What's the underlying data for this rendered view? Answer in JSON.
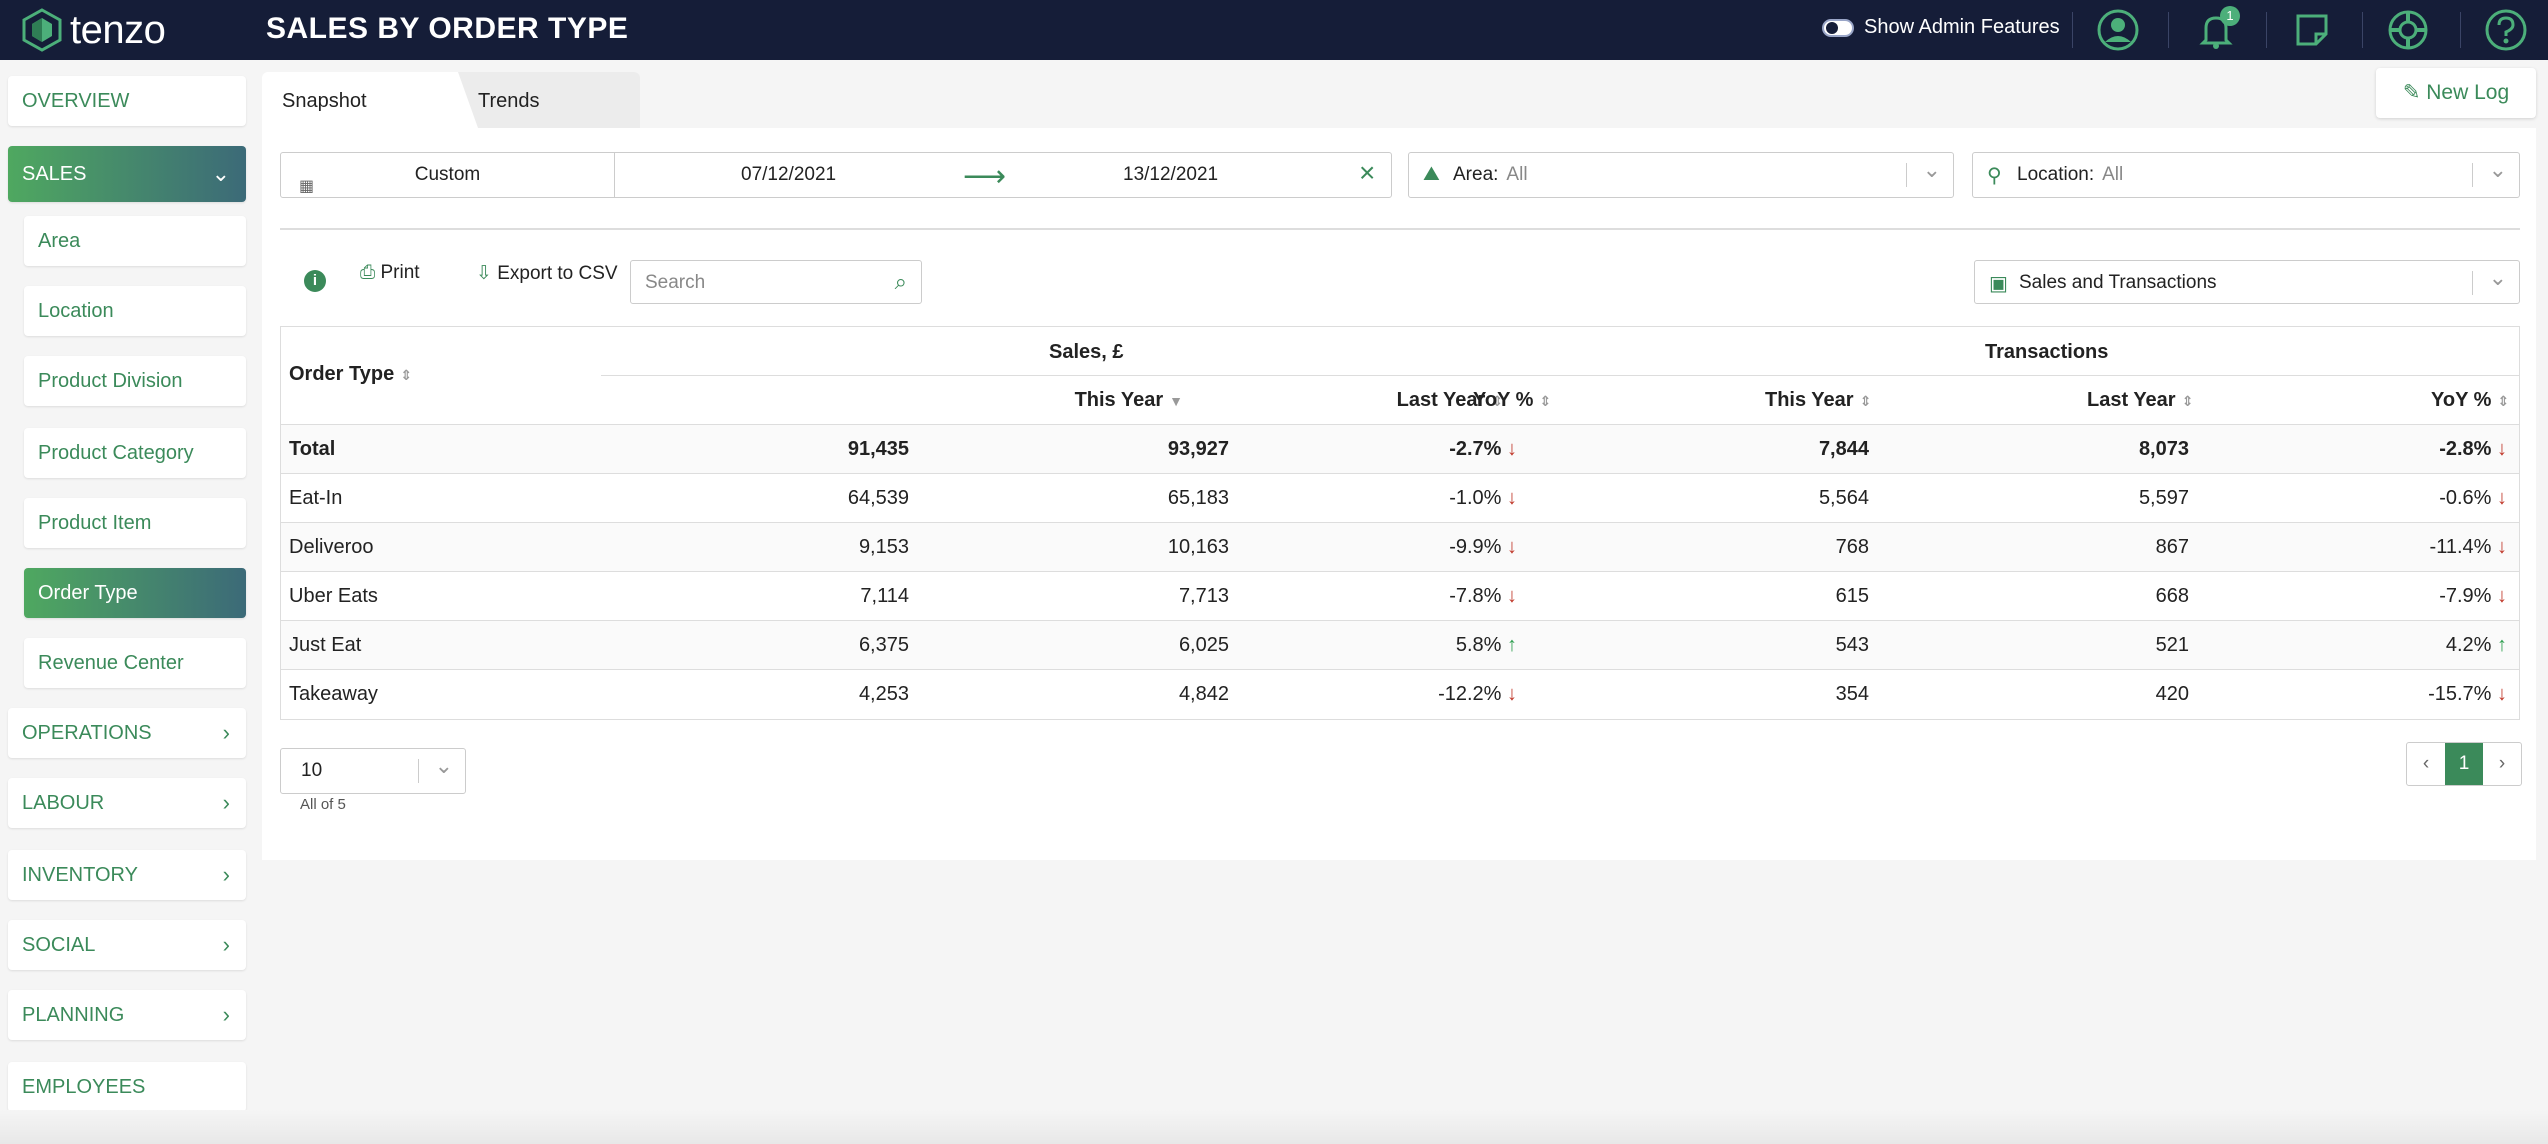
{
  "header": {
    "logo_text": "tenzo",
    "title": "SALES BY ORDER TYPE",
    "admin_label": "Show Admin Features",
    "notification_count": "1"
  },
  "sidebar": {
    "items": [
      {
        "label": "OVERVIEW"
      },
      {
        "label": "SALES"
      },
      {
        "label": "OPERATIONS"
      },
      {
        "label": "LABOUR"
      },
      {
        "label": "INVENTORY"
      },
      {
        "label": "SOCIAL"
      },
      {
        "label": "PLANNING"
      },
      {
        "label": "EMPLOYEES"
      }
    ],
    "sales_sub": [
      {
        "label": "Area"
      },
      {
        "label": "Location"
      },
      {
        "label": "Product Division"
      },
      {
        "label": "Product Category"
      },
      {
        "label": "Product Item"
      },
      {
        "label": "Order Type"
      },
      {
        "label": "Revenue Center"
      }
    ]
  },
  "tabs": [
    {
      "label": "Snapshot"
    },
    {
      "label": "Trends"
    }
  ],
  "new_log_label": "New Log",
  "filters": {
    "date_mode": "Custom",
    "date_from": "07/12/2021",
    "date_to": "13/12/2021",
    "area_label": "Area:",
    "area_value": "All",
    "location_label": "Location:",
    "location_value": "All"
  },
  "toolbar": {
    "print_label": "Print",
    "export_label": "Export to CSV",
    "search_placeholder": "Search",
    "metric_select": "Sales and Transactions"
  },
  "table": {
    "first_col": "Order Type",
    "groups": [
      "Sales, £",
      "Transactions"
    ],
    "sub_headers": [
      "This Year",
      "Last Year",
      "YoY %",
      "This Year",
      "Last Year",
      "YoY %"
    ],
    "rows": [
      {
        "name": "Total",
        "s_ty": "91,435",
        "s_ly": "93,927",
        "s_yoy": "-2.7%",
        "s_dir": "down",
        "t_ty": "7,844",
        "t_ly": "8,073",
        "t_yoy": "-2.8%",
        "t_dir": "down"
      },
      {
        "name": "Eat-In",
        "s_ty": "64,539",
        "s_ly": "65,183",
        "s_yoy": "-1.0%",
        "s_dir": "down",
        "t_ty": "5,564",
        "t_ly": "5,597",
        "t_yoy": "-0.6%",
        "t_dir": "down"
      },
      {
        "name": "Deliveroo",
        "s_ty": "9,153",
        "s_ly": "10,163",
        "s_yoy": "-9.9%",
        "s_dir": "down",
        "t_ty": "768",
        "t_ly": "867",
        "t_yoy": "-11.4%",
        "t_dir": "down"
      },
      {
        "name": "Uber Eats",
        "s_ty": "7,114",
        "s_ly": "7,713",
        "s_yoy": "-7.8%",
        "s_dir": "down",
        "t_ty": "615",
        "t_ly": "668",
        "t_yoy": "-7.9%",
        "t_dir": "down"
      },
      {
        "name": "Just Eat",
        "s_ty": "6,375",
        "s_ly": "6,025",
        "s_yoy": "5.8%",
        "s_dir": "up",
        "t_ty": "543",
        "t_ly": "521",
        "t_yoy": "4.2%",
        "t_dir": "up"
      },
      {
        "name": "Takeaway",
        "s_ty": "4,253",
        "s_ly": "4,842",
        "s_yoy": "-12.2%",
        "s_dir": "down",
        "t_ty": "354",
        "t_ly": "420",
        "t_yoy": "-15.7%",
        "t_dir": "down"
      }
    ]
  },
  "pagination": {
    "page_size": "10",
    "summary": "All of 5",
    "prev": "‹",
    "current": "1",
    "next": "›"
  }
}
